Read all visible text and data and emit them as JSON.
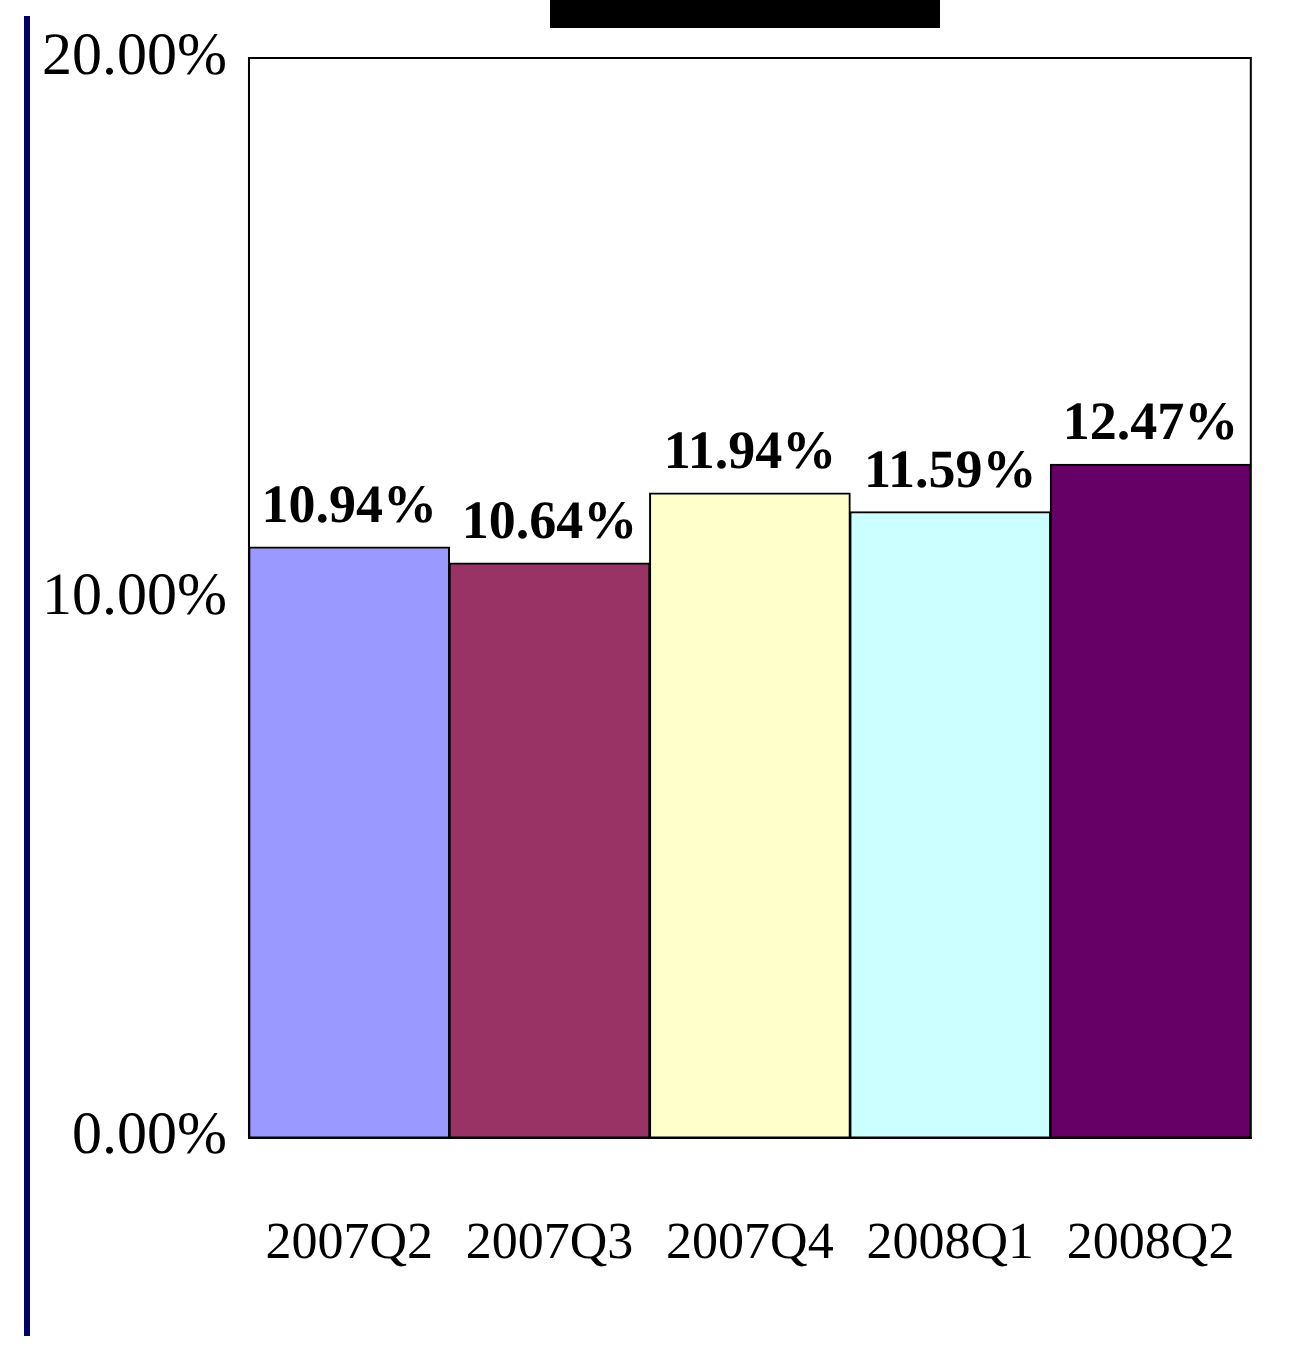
{
  "chart_data": {
    "type": "bar",
    "categories": [
      "2007Q2",
      "2007Q3",
      "2007Q4",
      "2008Q1",
      "2008Q2"
    ],
    "values": [
      10.94,
      10.64,
      11.94,
      11.59,
      12.47
    ],
    "colors": [
      "#9999ff",
      "#993366",
      "#ffffcc",
      "#ccffff",
      "#660066"
    ],
    "value_labels": [
      "10.94%",
      "10.64%",
      "11.94%",
      "11.59%",
      "12.47%"
    ],
    "ylim": [
      0,
      20
    ],
    "yticks": [
      {
        "value": 0,
        "label": "0.00%"
      },
      {
        "value": 10,
        "label": "10.00%"
      },
      {
        "value": 20,
        "label": "20.00%"
      }
    ],
    "grid": false,
    "legend": false
  }
}
